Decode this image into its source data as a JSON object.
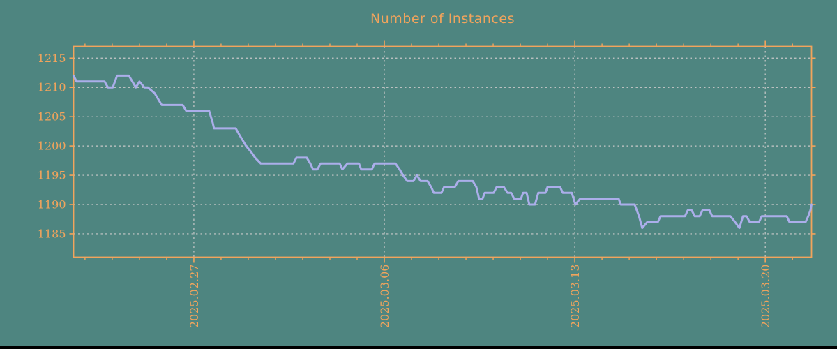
{
  "title": "Number of Instances",
  "colors": {
    "background": "#4E8580",
    "accent": "#F2A45C",
    "line": "#ABAEEA",
    "grid": "#C9C9C9",
    "footer": "#000000"
  },
  "chart_data": {
    "type": "line",
    "title": "Number of Instances",
    "xlabel": "",
    "ylabel": "",
    "grid": true,
    "legend": false,
    "ylim": [
      1181,
      1217
    ],
    "xlim_days": [
      0,
      27.12
    ],
    "y_ticks": [
      1185,
      1190,
      1195,
      1200,
      1205,
      1210,
      1215
    ],
    "x_major_ticks": [
      {
        "day": 4.42,
        "label": "2025.02.27"
      },
      {
        "day": 11.42,
        "label": "2025.03.06"
      },
      {
        "day": 18.42,
        "label": "2025.03.13"
      },
      {
        "day": 25.42,
        "label": "2025.03.20"
      }
    ],
    "x_minor_tick_start_day": 0.42,
    "x_minor_tick_interval_days": 1,
    "x_minor_tick_count": 27,
    "series": [
      {
        "name": "instances",
        "color": "#ABAEEA",
        "points": [
          [
            0.0,
            1212
          ],
          [
            0.11,
            1211
          ],
          [
            1.14,
            1211
          ],
          [
            1.26,
            1210
          ],
          [
            1.44,
            1210
          ],
          [
            1.6,
            1212
          ],
          [
            2.03,
            1212
          ],
          [
            2.16,
            1211
          ],
          [
            2.29,
            1210
          ],
          [
            2.42,
            1211
          ],
          [
            2.6,
            1210
          ],
          [
            2.73,
            1210
          ],
          [
            2.98,
            1209
          ],
          [
            3.11,
            1208
          ],
          [
            3.24,
            1207
          ],
          [
            4.01,
            1207
          ],
          [
            4.14,
            1206
          ],
          [
            4.98,
            1206
          ],
          [
            5.11,
            1204
          ],
          [
            5.16,
            1203
          ],
          [
            5.96,
            1203
          ],
          [
            6.08,
            1202
          ],
          [
            6.21,
            1201
          ],
          [
            6.34,
            1200
          ],
          [
            6.52,
            1199
          ],
          [
            6.67,
            1198
          ],
          [
            6.88,
            1197
          ],
          [
            8.08,
            1197
          ],
          [
            8.19,
            1198
          ],
          [
            8.57,
            1198
          ],
          [
            8.7,
            1197
          ],
          [
            8.8,
            1196
          ],
          [
            8.96,
            1196
          ],
          [
            9.08,
            1197
          ],
          [
            9.78,
            1197
          ],
          [
            9.88,
            1196
          ],
          [
            10.06,
            1197
          ],
          [
            10.49,
            1197
          ],
          [
            10.57,
            1196
          ],
          [
            10.96,
            1196
          ],
          [
            11.06,
            1197
          ],
          [
            11.83,
            1197
          ],
          [
            11.98,
            1196
          ],
          [
            12.11,
            1195
          ],
          [
            12.26,
            1194
          ],
          [
            12.49,
            1194
          ],
          [
            12.62,
            1195
          ],
          [
            12.75,
            1194
          ],
          [
            13.01,
            1194
          ],
          [
            13.14,
            1193
          ],
          [
            13.24,
            1192
          ],
          [
            13.52,
            1192
          ],
          [
            13.62,
            1193
          ],
          [
            14.01,
            1193
          ],
          [
            14.14,
            1194
          ],
          [
            14.67,
            1194
          ],
          [
            14.8,
            1193
          ],
          [
            14.9,
            1191
          ],
          [
            15.03,
            1191
          ],
          [
            15.11,
            1192
          ],
          [
            15.44,
            1192
          ],
          [
            15.55,
            1193
          ],
          [
            15.81,
            1193
          ],
          [
            15.95,
            1192
          ],
          [
            16.08,
            1192
          ],
          [
            16.19,
            1191
          ],
          [
            16.44,
            1191
          ],
          [
            16.52,
            1192
          ],
          [
            16.65,
            1192
          ],
          [
            16.75,
            1190
          ],
          [
            16.96,
            1190
          ],
          [
            17.08,
            1192
          ],
          [
            17.34,
            1192
          ],
          [
            17.42,
            1193
          ],
          [
            17.88,
            1193
          ],
          [
            17.98,
            1192
          ],
          [
            18.31,
            1192
          ],
          [
            18.44,
            1190
          ],
          [
            18.62,
            1191
          ],
          [
            20.03,
            1191
          ],
          [
            20.11,
            1190
          ],
          [
            20.62,
            1190
          ],
          [
            20.78,
            1188
          ],
          [
            20.9,
            1186
          ],
          [
            21.08,
            1187
          ],
          [
            21.47,
            1187
          ],
          [
            21.57,
            1188
          ],
          [
            22.47,
            1188
          ],
          [
            22.57,
            1189
          ],
          [
            22.72,
            1189
          ],
          [
            22.83,
            1188
          ],
          [
            23.01,
            1188
          ],
          [
            23.11,
            1189
          ],
          [
            23.37,
            1189
          ],
          [
            23.47,
            1188
          ],
          [
            24.14,
            1188
          ],
          [
            24.31,
            1187
          ],
          [
            24.47,
            1186
          ],
          [
            24.6,
            1188
          ],
          [
            24.73,
            1188
          ],
          [
            24.85,
            1187
          ],
          [
            25.19,
            1187
          ],
          [
            25.29,
            1188
          ],
          [
            26.21,
            1188
          ],
          [
            26.31,
            1187
          ],
          [
            26.9,
            1187
          ],
          [
            27.0,
            1188
          ],
          [
            27.08,
            1189
          ],
          [
            27.12,
            1190
          ]
        ]
      }
    ]
  }
}
